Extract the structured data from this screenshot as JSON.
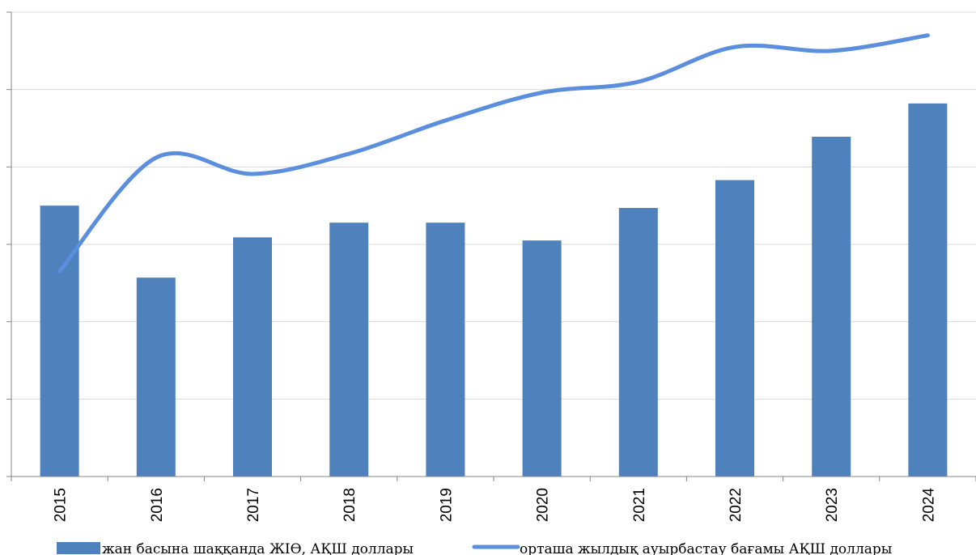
{
  "chart_data": {
    "type": "bar",
    "categories": [
      "2015",
      "2016",
      "2017",
      "2018",
      "2019",
      "2020",
      "2021",
      "2022",
      "2023",
      "2024"
    ],
    "ylim": [
      0,
      6
    ],
    "grid": true,
    "legend_position": "bottom",
    "series": [
      {
        "name": "жан басына шаққанда ЖІӨ, АҚШ доллары",
        "type": "bar",
        "color": "#4f81bd",
        "values": [
          3.5,
          2.57,
          3.09,
          3.28,
          3.28,
          3.05,
          3.47,
          3.83,
          4.39,
          4.82
        ]
      },
      {
        "name": "орташа жылдық ауырбастау бағамы АҚШ доллары",
        "type": "line",
        "color": "#5b8fde",
        "values": [
          2.65,
          4.12,
          3.91,
          4.17,
          4.6,
          4.96,
          5.1,
          5.55,
          5.5,
          5.7
        ]
      }
    ]
  }
}
